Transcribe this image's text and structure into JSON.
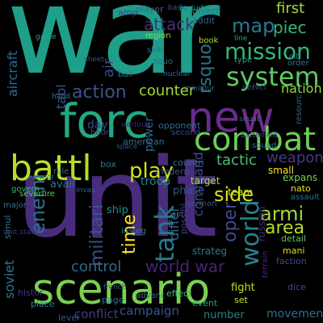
{
  "words": [
    {
      "text": "war",
      "color": "#1f9e89"
    },
    {
      "text": "unit",
      "color": "#472d7b"
    },
    {
      "text": "scenario",
      "color": "#7ad151"
    },
    {
      "text": "forc",
      "color": "#22a884"
    },
    {
      "text": "new",
      "color": "#6a2c8a"
    },
    {
      "text": "combat",
      "color": "#6ece58"
    },
    {
      "text": "battl",
      "color": "#b5de2b"
    },
    {
      "text": "system",
      "color": "#5ec962"
    },
    {
      "text": "mission",
      "color": "#35b779"
    },
    {
      "text": "map",
      "color": "#2a788e"
    },
    {
      "text": "piec",
      "color": "#35b779"
    },
    {
      "text": "tank",
      "color": "#2a788e"
    },
    {
      "text": "world",
      "color": "#26828e"
    },
    {
      "text": "play",
      "color": "#cfe11c"
    },
    {
      "text": "side",
      "color": "#dde318"
    },
    {
      "text": "action",
      "color": "#3b528b"
    },
    {
      "text": "counter",
      "color": "#a0da39"
    },
    {
      "text": "enemi",
      "color": "#2e6e8e"
    },
    {
      "text": "time",
      "color": "#fde725"
    },
    {
      "text": "oper",
      "color": "#3e4a89"
    },
    {
      "text": "armi",
      "color": "#a2da37"
    },
    {
      "text": "area",
      "color": "#b8de29"
    },
    {
      "text": "militari",
      "color": "#3b528b"
    },
    {
      "text": "world war",
      "color": "#482374"
    },
    {
      "text": "control",
      "color": "#31688e"
    },
    {
      "text": "weapon",
      "color": "#443a83"
    },
    {
      "text": "tactic",
      "color": "#4ac16d"
    },
    {
      "text": "command",
      "color": "#3e4989"
    },
    {
      "text": "attack",
      "color": "#472d7b"
    },
    {
      "text": "first",
      "color": "#a0da39"
    },
    {
      "text": "nation",
      "color": "#90d743"
    },
    {
      "text": "rsquo",
      "color": "#2c728e"
    },
    {
      "text": "aircraft",
      "color": "#31688e"
    },
    {
      "text": "soviet",
      "color": "#2a788e"
    },
    {
      "text": "differ",
      "color": "#31688e"
    },
    {
      "text": "campaign",
      "color": "#3b528b"
    },
    {
      "text": "conflict",
      "color": "#443983"
    },
    {
      "text": "fight",
      "color": "#c2df23"
    },
    {
      "text": "movement",
      "color": "#2e6e8e"
    },
    {
      "text": "number",
      "color": "#25848e"
    },
    {
      "text": "strateg",
      "color": "#2a788e"
    },
    {
      "text": "day",
      "color": "#3e4a89"
    },
    {
      "text": "power",
      "color": "#31688e"
    },
    {
      "text": "troop",
      "color": "#26828e"
    },
    {
      "text": "avail",
      "color": "#2c728e"
    },
    {
      "text": "ship",
      "color": "#21918c"
    },
    {
      "text": "phase",
      "color": "#39568c"
    },
    {
      "text": "small",
      "color": "#fde725"
    },
    {
      "text": "expans",
      "color": "#7ad151"
    },
    {
      "text": "target",
      "color": "#a0da39"
    },
    {
      "text": "team",
      "color": "#c8e020"
    },
    {
      "text": "air",
      "color": "#3e4a89"
    },
    {
      "text": "possibl",
      "color": "#433e85"
    },
    {
      "text": "russian",
      "color": "#472d7b"
    },
    {
      "text": "histor",
      "color": "#46337f"
    },
    {
      "text": "place",
      "color": "#25848e"
    },
    {
      "text": "level",
      "color": "#3b528b"
    },
    {
      "text": "page",
      "color": "#2c728e"
    },
    {
      "text": "event",
      "color": "#1fa188"
    },
    {
      "text": "set",
      "color": "#d2e21b"
    },
    {
      "text": "detail",
      "color": "#5ec962"
    },
    {
      "text": "faction",
      "color": "#3e4a89"
    },
    {
      "text": "mani",
      "color": "#d8e219"
    },
    {
      "text": "modern",
      "color": "#3b528b"
    },
    {
      "text": "countri",
      "color": "#2c728e"
    },
    {
      "text": "american",
      "color": "#2c728e"
    },
    {
      "text": "opponent",
      "color": "#31688e"
    },
    {
      "text": "german",
      "color": "#3b528b"
    },
    {
      "text": "nato",
      "color": "#dde318"
    },
    {
      "text": "player",
      "color": "#31688e"
    },
    {
      "text": "effect",
      "color": "#35b779"
    },
    {
      "text": "includ",
      "color": "#21918c"
    },
    {
      "text": "object",
      "color": "#2a788e"
    },
    {
      "text": "addit",
      "color": "#31688e"
    },
    {
      "text": "amp",
      "color": "#3e4989"
    },
    {
      "text": "region",
      "color": "#90d743"
    },
    {
      "text": "book",
      "color": "#b5de2b"
    },
    {
      "text": "skill",
      "color": "#2c728e"
    },
    {
      "text": "bull",
      "color": "#26828e"
    },
    {
      "text": "citi",
      "color": "#26828e"
    },
    {
      "text": "order",
      "color": "#2a788e"
    },
    {
      "text": "type",
      "color": "#20a386"
    },
    {
      "text": "squad",
      "color": "#2c728e"
    },
    {
      "text": "vehicl",
      "color": "#3b528b"
    },
    {
      "text": "resourc",
      "color": "#31688e"
    },
    {
      "text": "second",
      "color": "#3e4a89"
    },
    {
      "text": "hour",
      "color": "#3e4a89"
    },
    {
      "text": "govern",
      "color": "#35b779"
    },
    {
      "text": "major",
      "color": "#2c728e"
    },
    {
      "text": "severfire",
      "color": "#5ec962"
    },
    {
      "text": "rule",
      "color": "#2c728e"
    },
    {
      "text": "various",
      "color": "#482374"
    },
    {
      "text": "space",
      "color": "#3e4a89"
    },
    {
      "text": "simul",
      "color": "#2a788e"
    },
    {
      "text": "insurg",
      "color": "#26828e"
    },
    {
      "text": "french",
      "color": "#39568c"
    },
    {
      "text": "dice",
      "color": "#3e4989"
    },
    {
      "text": "terrain",
      "color": "#482374"
    },
    {
      "text": "advanc",
      "color": "#2c728e"
    },
    {
      "text": "assault",
      "color": "#2c728e"
    },
    {
      "text": "box",
      "color": "#2a788e"
    },
    {
      "text": "sheet",
      "color": "#3e4a89"
    },
    {
      "text": "hand",
      "color": "#26828e"
    },
    {
      "text": "invas",
      "color": "#31688e"
    },
    {
      "text": "battlefield",
      "color": "#3e4a89"
    },
    {
      "text": "situat",
      "color": "#2a788e"
    },
    {
      "text": "line",
      "color": "#20a386"
    },
    {
      "text": "ancient",
      "color": "#31688e"
    },
    {
      "text": "unit state",
      "color": "#46337f"
    },
    {
      "text": "tabl",
      "color": "#3b528b"
    },
    {
      "text": "miniatur",
      "color": "#31688e"
    },
    {
      "text": "nuclear",
      "color": "#2c728e"
    },
    {
      "text": "squo",
      "color": "#2c728e"
    },
    {
      "text": "basic",
      "color": "#3b528b"
    },
    {
      "text": "armor",
      "color": "#2a788e"
    },
    {
      "text": "game",
      "color": "#22a884"
    }
  ]
}
